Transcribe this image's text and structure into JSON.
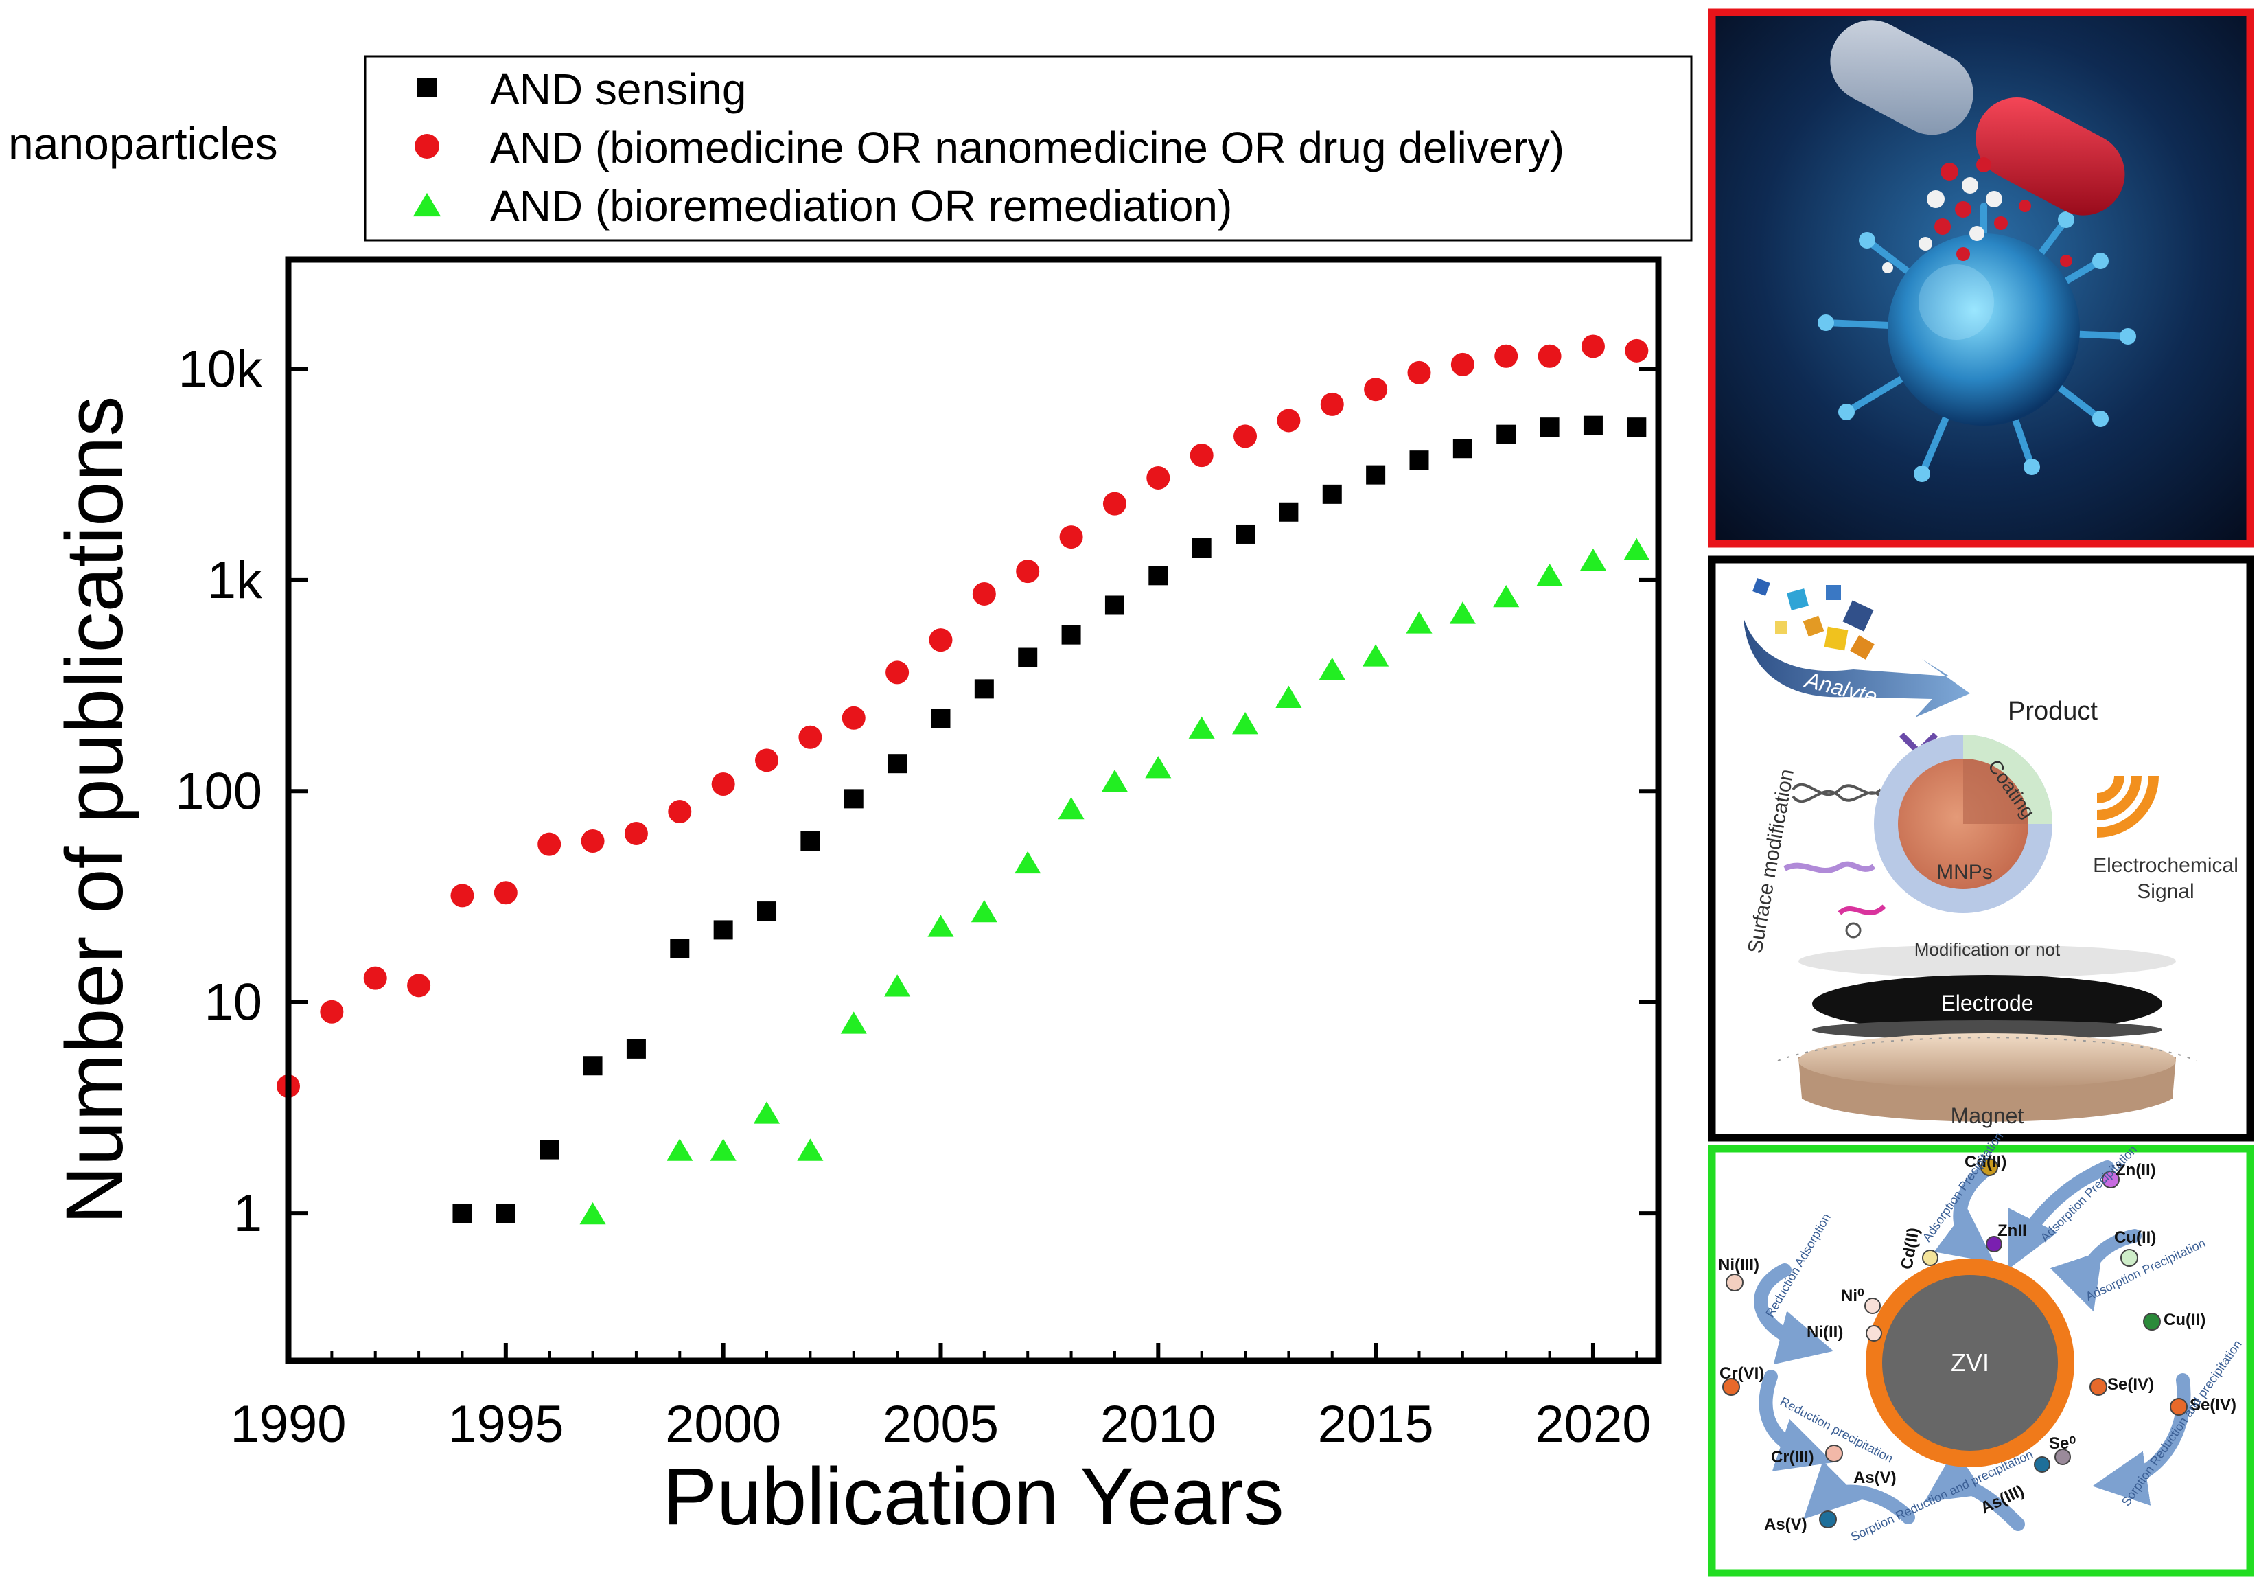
{
  "chart_data": {
    "type": "scatter",
    "title": "",
    "xlabel": "Publication Years",
    "ylabel": "Number of publications",
    "xscale": "linear",
    "yscale": "log",
    "xlim": [
      1990,
      2021.5
    ],
    "ylim": [
      0.2,
      33000
    ],
    "xticks": [
      1990,
      1995,
      2000,
      2005,
      2010,
      2015,
      2020
    ],
    "xtick_labels": [
      "1990",
      "1995",
      "2000",
      "2005",
      "2010",
      "2015",
      "2020"
    ],
    "yticks": [
      1,
      10,
      100,
      1000,
      10000
    ],
    "ytick_labels": [
      "1",
      "10",
      "100",
      "1k",
      "10k"
    ],
    "legend_prefix": "nanoparticles",
    "legend_position": "top",
    "series": [
      {
        "name": "AND sensing",
        "marker": "square",
        "color": "#000000",
        "points": [
          [
            1994,
            1
          ],
          [
            1995,
            1
          ],
          [
            1996,
            2
          ],
          [
            1997,
            5
          ],
          [
            1998,
            6
          ],
          [
            1999,
            18
          ],
          [
            2000,
            22
          ],
          [
            2001,
            27
          ],
          [
            2002,
            58
          ],
          [
            2003,
            92
          ],
          [
            2004,
            135
          ],
          [
            2005,
            220
          ],
          [
            2006,
            305
          ],
          [
            2007,
            430
          ],
          [
            2008,
            550
          ],
          [
            2009,
            760
          ],
          [
            2010,
            1050
          ],
          [
            2011,
            1420
          ],
          [
            2012,
            1650
          ],
          [
            2013,
            2100
          ],
          [
            2014,
            2550
          ],
          [
            2015,
            3150
          ],
          [
            2016,
            3700
          ],
          [
            2017,
            4200
          ],
          [
            2018,
            4900
          ],
          [
            2019,
            5300
          ],
          [
            2020,
            5400
          ],
          [
            2021,
            5300
          ]
        ]
      },
      {
        "name": "AND (biomedicine OR nanomedicine OR drug delivery)",
        "marker": "circle",
        "color": "#e8141a",
        "points": [
          [
            1990,
            4
          ],
          [
            1991,
            9
          ],
          [
            1992,
            13
          ],
          [
            1993,
            12
          ],
          [
            1994,
            32
          ],
          [
            1995,
            33
          ],
          [
            1996,
            56
          ],
          [
            1997,
            58
          ],
          [
            1998,
            63
          ],
          [
            1999,
            80
          ],
          [
            2000,
            108
          ],
          [
            2001,
            140
          ],
          [
            2002,
            180
          ],
          [
            2003,
            222
          ],
          [
            2004,
            365
          ],
          [
            2005,
            520
          ],
          [
            2006,
            860
          ],
          [
            2007,
            1100
          ],
          [
            2008,
            1600
          ],
          [
            2009,
            2300
          ],
          [
            2010,
            3050
          ],
          [
            2011,
            3900
          ],
          [
            2012,
            4800
          ],
          [
            2013,
            5700
          ],
          [
            2014,
            6800
          ],
          [
            2015,
            8000
          ],
          [
            2016,
            9600
          ],
          [
            2017,
            10500
          ],
          [
            2018,
            11500
          ],
          [
            2019,
            11500
          ],
          [
            2020,
            12800
          ],
          [
            2021,
            12200
          ]
        ]
      },
      {
        "name": "AND (bioremediation OR remediation)",
        "marker": "triangle",
        "color": "#22ee22",
        "points": [
          [
            1997,
            1
          ],
          [
            1999,
            2
          ],
          [
            2000,
            2
          ],
          [
            2001,
            3
          ],
          [
            2002,
            2
          ],
          [
            2003,
            8
          ],
          [
            2004,
            12
          ],
          [
            2005,
            23
          ],
          [
            2006,
            27
          ],
          [
            2007,
            46
          ],
          [
            2008,
            83
          ],
          [
            2009,
            112
          ],
          [
            2010,
            130
          ],
          [
            2011,
            200
          ],
          [
            2012,
            210
          ],
          [
            2013,
            280
          ],
          [
            2014,
            380
          ],
          [
            2015,
            440
          ],
          [
            2016,
            630
          ],
          [
            2017,
            700
          ],
          [
            2018,
            840
          ],
          [
            2019,
            1060
          ],
          [
            2020,
            1250
          ],
          [
            2021,
            1400
          ]
        ]
      }
    ]
  },
  "panels": {
    "drug_delivery": {
      "icon": "capsule-virus-illustration",
      "border_color": "#e8141a"
    },
    "sensing": {
      "border_color": "#000000",
      "analyte": "Analyte",
      "product": "Product",
      "surface_modification": "Surface modification",
      "coating": "Coating",
      "core": "MNPs",
      "signal_line1": "Electrochemical",
      "signal_line2": "Signal",
      "modification": "Modification or not",
      "electrode": "Electrode",
      "magnet": "Magnet"
    },
    "remediation": {
      "border_color": "#22dd22",
      "core": "ZVI",
      "ions": [
        "Cd(II)",
        "Zn(II)",
        "ZnII",
        "Cu(II)",
        "Cu(II)",
        "Ni(III)",
        "Ni⁰",
        "Ni(II)",
        "Cd(II)",
        "Cr(VI)",
        "Cr(III)",
        "Se(IV)",
        "Se(IV)",
        "Se⁰",
        "As(V)",
        "As(V)",
        "As(III)"
      ],
      "processes": [
        "Adsorption Precipitation",
        "Adsorption Precipitation",
        "Reduction Adsorption",
        "Adsorption Precipitation",
        "Reduction precipitation",
        "Sorption Reduction and precipitation",
        "Sorption Reduction and precipitation"
      ]
    }
  }
}
